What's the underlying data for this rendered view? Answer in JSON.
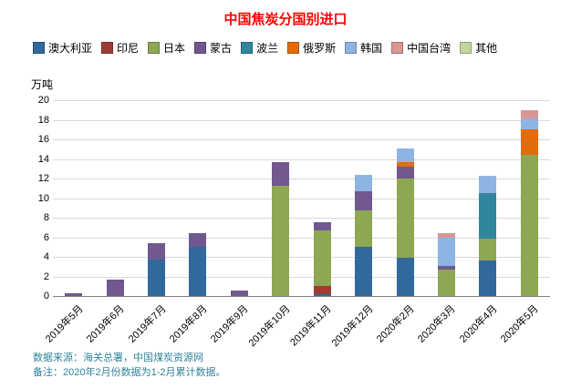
{
  "title": "中国焦炭分国别进口",
  "unit_label": "万吨",
  "footer": {
    "source": "数据来源：海关总署，中国煤炭资源网",
    "note": "备注：2020年2月份数据为1-2月累计数据。"
  },
  "chart_data": {
    "type": "bar",
    "stacked": true,
    "title": "中国焦炭分国别进口",
    "ylabel": "万吨",
    "ylim": [
      0,
      20
    ],
    "ytick_step": 2,
    "grid": true,
    "legend_position": "top",
    "categories": [
      "2019年5月",
      "2019年6月",
      "2019年7月",
      "2019年8月",
      "2019年9月",
      "2019年10月",
      "2019年11月",
      "2019年12月",
      "2020年2月",
      "2020年3月",
      "2020年4月",
      "2020年5月"
    ],
    "series": [
      {
        "name": "澳大利亚",
        "color": "#31699c",
        "values": [
          0,
          0,
          3.7,
          5.0,
          0,
          0,
          0.2,
          5.0,
          3.9,
          0,
          3.6,
          0
        ]
      },
      {
        "name": "印尼",
        "color": "#9e3b33",
        "values": [
          0,
          0,
          0,
          0,
          0,
          0,
          0.8,
          0,
          0,
          0,
          0,
          0
        ]
      },
      {
        "name": "日本",
        "color": "#8da753",
        "values": [
          0,
          0,
          0,
          0,
          0,
          11.3,
          5.7,
          3.7,
          8.1,
          2.7,
          2.3,
          14.4
        ]
      },
      {
        "name": "蒙古",
        "color": "#71588f",
        "values": [
          0.3,
          1.7,
          1.7,
          1.4,
          0.6,
          2.4,
          0.8,
          2.0,
          1.2,
          0.4,
          0,
          0
        ]
      },
      {
        "name": "波兰",
        "color": "#31859c",
        "values": [
          0,
          0,
          0,
          0,
          0,
          0,
          0,
          0,
          0,
          0,
          4.6,
          0
        ]
      },
      {
        "name": "俄罗斯",
        "color": "#e36c0a",
        "values": [
          0,
          0,
          0,
          0,
          0,
          0,
          0,
          0,
          0.5,
          0,
          0,
          2.6
        ]
      },
      {
        "name": "韩国",
        "color": "#8eb4e3",
        "values": [
          0,
          0,
          0,
          0,
          0,
          0,
          0,
          1.7,
          1.4,
          2.9,
          1.8,
          1.1
        ]
      },
      {
        "name": "中国台湾",
        "color": "#d99694",
        "values": [
          0,
          0,
          0,
          0,
          0,
          0,
          0,
          0,
          0,
          0.4,
          0,
          0.9
        ]
      },
      {
        "name": "其他",
        "color": "#c3d69b",
        "values": [
          0,
          0,
          0,
          0,
          0,
          0,
          0,
          0,
          0,
          0,
          0,
          0
        ]
      }
    ]
  }
}
